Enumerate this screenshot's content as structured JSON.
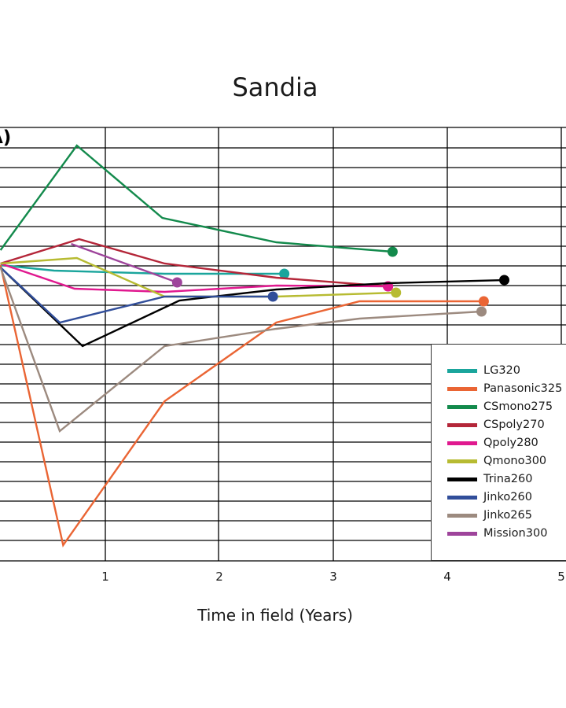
{
  "chart_data": {
    "type": "line",
    "title": "Sandia",
    "panel_label": "A)",
    "xlabel": "Time in field (Years)",
    "ylabel": "",
    "xlim": [
      0.08,
      5
    ],
    "x_ticks": [
      1,
      2,
      3,
      4,
      5
    ],
    "x_tick_labels": [
      "1",
      "2",
      "3",
      "4",
      "5"
    ],
    "grid": true,
    "legend_position": "bottom-right",
    "series": [
      {
        "name": "LG320",
        "color": "#1aa59c",
        "x": [
          0.08,
          0.55,
          1.52,
          2.57
        ],
        "y": [
          337,
          344,
          348,
          348
        ]
      },
      {
        "name": "Panasonic325",
        "color": "#ea6534",
        "x": [
          0.08,
          0.63,
          1.52,
          2.5,
          3.23,
          4.32
        ],
        "y": [
          337,
          693,
          510,
          410,
          383,
          383
        ]
      },
      {
        "name": "CSmono275",
        "color": "#138a4c",
        "x": [
          0.08,
          0.75,
          1.5,
          2.5,
          3.52
        ],
        "y": [
          318,
          185,
          277,
          308,
          320
        ]
      },
      {
        "name": "CSpoly270",
        "color": "#b42639",
        "x": [
          0.08,
          0.77,
          1.52,
          2.5,
          3.48
        ],
        "y": [
          335,
          304,
          335,
          353,
          364
        ]
      },
      {
        "name": "Qpoly280",
        "color": "#e0198f",
        "x": [
          0.08,
          0.73,
          1.52,
          2.5,
          3.48
        ],
        "y": [
          335,
          367,
          371,
          363,
          364
        ]
      },
      {
        "name": "Qmono300",
        "color": "#b7bb32",
        "x": [
          0.08,
          0.75,
          1.52,
          2.5,
          3.55
        ],
        "y": [
          335,
          328,
          377,
          377,
          372
        ]
      },
      {
        "name": "Trina260",
        "color": "#000000",
        "x": [
          0.08,
          0.8,
          1.65,
          2.5,
          3.48,
          4.5
        ],
        "y": [
          340,
          440,
          382,
          368,
          360,
          356
        ]
      },
      {
        "name": "Jinko260",
        "color": "#314e9a",
        "x": [
          0.08,
          0.6,
          1.52,
          2.47
        ],
        "y": [
          340,
          410,
          377,
          377
        ]
      },
      {
        "name": "Jinko265",
        "color": "#9c8a7f",
        "x": [
          0.08,
          0.6,
          1.52,
          2.5,
          3.23,
          4.3
        ],
        "y": [
          340,
          548,
          440,
          418,
          405,
          396
        ]
      },
      {
        "name": "Mission300",
        "color": "#9e449b",
        "x": [
          0.7,
          1.63
        ],
        "y": [
          310,
          359
        ]
      }
    ],
    "end_markers": true
  }
}
